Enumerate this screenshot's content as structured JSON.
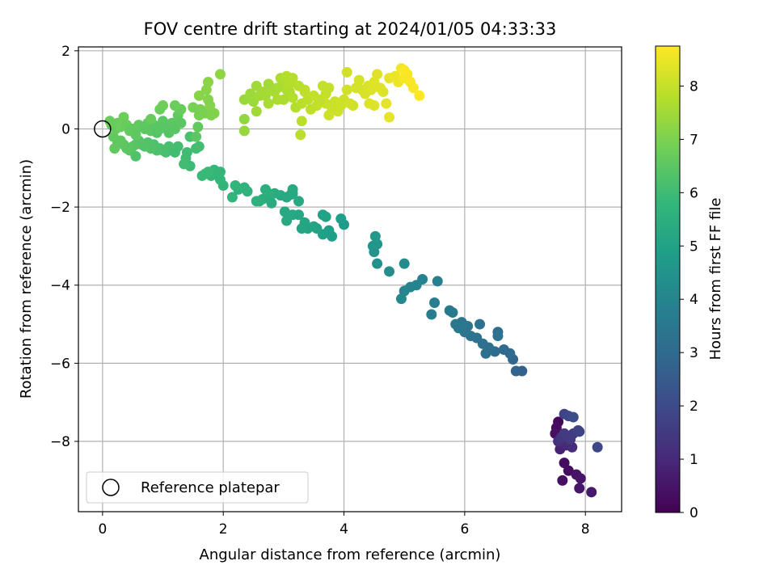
{
  "chart_data": {
    "type": "scatter",
    "title": "FOV centre drift starting at 2024/01/05 04:33:33",
    "xlabel": "Angular distance from reference (arcmin)",
    "ylabel": "Rotation from reference (arcmin)",
    "xlim": [
      -0.4,
      8.6
    ],
    "ylim": [
      -9.8,
      2.1
    ],
    "xticks": [
      0,
      2,
      4,
      6,
      8
    ],
    "yticks": [
      -8,
      -6,
      -4,
      -2,
      0,
      2
    ],
    "xtick_labels": [
      "0",
      "2",
      "4",
      "6",
      "8"
    ],
    "ytick_labels": [
      "−8",
      "−6",
      "−4",
      "−2",
      "0",
      "2"
    ],
    "grid": true,
    "colormap": "viridis",
    "colorbar": {
      "label": "Hours from first FF file",
      "range": [
        0,
        8.75
      ],
      "ticks": [
        0,
        1,
        2,
        3,
        4,
        5,
        6,
        7,
        8
      ],
      "tick_labels": [
        "0",
        "1",
        "2",
        "3",
        "4",
        "5",
        "6",
        "7",
        "8"
      ]
    },
    "legend": {
      "position": "lower-left",
      "entries": [
        "Reference platepar"
      ]
    },
    "reference_point": {
      "x": 0,
      "y": 0
    },
    "points": [
      {
        "x": 7.55,
        "y": -7.5,
        "h": 0.2
      },
      {
        "x": 7.52,
        "y": -7.65,
        "h": 0.3
      },
      {
        "x": 7.5,
        "y": -7.8,
        "h": 0.4
      },
      {
        "x": 7.62,
        "y": -7.85,
        "h": 0.5
      },
      {
        "x": 7.7,
        "y": -8.0,
        "h": 0.6
      },
      {
        "x": 7.65,
        "y": -8.55,
        "h": 0.3
      },
      {
        "x": 7.72,
        "y": -8.75,
        "h": 0.35
      },
      {
        "x": 7.85,
        "y": -8.85,
        "h": 0.45
      },
      {
        "x": 7.92,
        "y": -8.95,
        "h": 0.5
      },
      {
        "x": 7.9,
        "y": -9.2,
        "h": 0.55
      },
      {
        "x": 8.1,
        "y": -9.3,
        "h": 0.6
      },
      {
        "x": 7.62,
        "y": -9.0,
        "h": 0.4
      },
      {
        "x": 7.58,
        "y": -8.2,
        "h": 0.8
      },
      {
        "x": 7.68,
        "y": -8.1,
        "h": 1.0
      },
      {
        "x": 7.78,
        "y": -8.15,
        "h": 1.1
      },
      {
        "x": 7.55,
        "y": -8.0,
        "h": 1.2
      },
      {
        "x": 7.6,
        "y": -7.9,
        "h": 1.4
      },
      {
        "x": 7.75,
        "y": -7.95,
        "h": 1.5
      },
      {
        "x": 7.8,
        "y": -7.8,
        "h": 1.6
      },
      {
        "x": 7.9,
        "y": -7.75,
        "h": 1.7
      },
      {
        "x": 7.65,
        "y": -7.3,
        "h": 1.8
      },
      {
        "x": 7.72,
        "y": -7.35,
        "h": 1.9
      },
      {
        "x": 7.8,
        "y": -7.38,
        "h": 2.0
      },
      {
        "x": 7.65,
        "y": -7.8,
        "h": 1.5
      },
      {
        "x": 8.2,
        "y": -8.15,
        "h": 1.9
      },
      {
        "x": 7.88,
        "y": -7.72,
        "h": 1.75
      },
      {
        "x": 6.95,
        "y": -6.2,
        "h": 2.7
      },
      {
        "x": 6.85,
        "y": -6.2,
        "h": 2.8
      },
      {
        "x": 6.8,
        "y": -5.9,
        "h": 2.9
      },
      {
        "x": 6.75,
        "y": -5.75,
        "h": 3.0
      },
      {
        "x": 6.65,
        "y": -5.65,
        "h": 3.0
      },
      {
        "x": 6.55,
        "y": -5.2,
        "h": 3.1
      },
      {
        "x": 6.5,
        "y": -5.7,
        "h": 3.1
      },
      {
        "x": 6.4,
        "y": -5.6,
        "h": 3.2
      },
      {
        "x": 6.35,
        "y": -5.75,
        "h": 3.2
      },
      {
        "x": 6.3,
        "y": -5.5,
        "h": 3.25
      },
      {
        "x": 6.25,
        "y": -5.0,
        "h": 3.3
      },
      {
        "x": 6.2,
        "y": -5.35,
        "h": 3.3
      },
      {
        "x": 6.1,
        "y": -5.3,
        "h": 3.35
      },
      {
        "x": 6.05,
        "y": -5.05,
        "h": 3.4
      },
      {
        "x": 6.0,
        "y": -5.2,
        "h": 3.4
      },
      {
        "x": 5.95,
        "y": -4.95,
        "h": 3.45
      },
      {
        "x": 5.9,
        "y": -5.1,
        "h": 3.5
      },
      {
        "x": 5.85,
        "y": -5.0,
        "h": 3.5
      },
      {
        "x": 5.8,
        "y": -4.7,
        "h": 3.55
      },
      {
        "x": 5.75,
        "y": -4.65,
        "h": 3.6
      },
      {
        "x": 6.55,
        "y": -5.3,
        "h": 3.3
      },
      {
        "x": 5.5,
        "y": -4.45,
        "h": 3.7
      },
      {
        "x": 5.45,
        "y": -4.75,
        "h": 3.75
      },
      {
        "x": 5.55,
        "y": -3.9,
        "h": 3.8
      },
      {
        "x": 5.3,
        "y": -3.85,
        "h": 3.9
      },
      {
        "x": 5.2,
        "y": -4.0,
        "h": 3.95
      },
      {
        "x": 5.1,
        "y": -4.05,
        "h": 4.0
      },
      {
        "x": 5.0,
        "y": -4.15,
        "h": 4.05
      },
      {
        "x": 4.95,
        "y": -4.35,
        "h": 4.1
      },
      {
        "x": 5.0,
        "y": -3.45,
        "h": 4.2
      },
      {
        "x": 4.75,
        "y": -3.65,
        "h": 4.3
      },
      {
        "x": 4.55,
        "y": -3.45,
        "h": 4.4
      },
      {
        "x": 4.5,
        "y": -3.15,
        "h": 4.5
      },
      {
        "x": 4.48,
        "y": -3.0,
        "h": 4.55
      },
      {
        "x": 4.55,
        "y": -2.95,
        "h": 4.6
      },
      {
        "x": 4.52,
        "y": -2.75,
        "h": 4.65
      },
      {
        "x": 4.0,
        "y": -2.45,
        "h": 4.8
      },
      {
        "x": 3.95,
        "y": -2.3,
        "h": 4.85
      },
      {
        "x": 3.8,
        "y": -2.75,
        "h": 4.9
      },
      {
        "x": 3.75,
        "y": -2.6,
        "h": 4.9
      },
      {
        "x": 3.65,
        "y": -2.7,
        "h": 4.95
      },
      {
        "x": 3.7,
        "y": -2.25,
        "h": 5.0
      },
      {
        "x": 3.65,
        "y": -2.2,
        "h": 5.0
      },
      {
        "x": 3.55,
        "y": -2.55,
        "h": 5.05
      },
      {
        "x": 3.5,
        "y": -2.5,
        "h": 5.1
      },
      {
        "x": 3.4,
        "y": -2.55,
        "h": 5.1
      },
      {
        "x": 3.35,
        "y": -2.4,
        "h": 5.15
      },
      {
        "x": 3.3,
        "y": -2.55,
        "h": 5.15
      },
      {
        "x": 3.25,
        "y": -2.2,
        "h": 5.2
      },
      {
        "x": 3.15,
        "y": -2.2,
        "h": 5.2
      },
      {
        "x": 3.05,
        "y": -2.35,
        "h": 5.25
      },
      {
        "x": 3.02,
        "y": -2.12,
        "h": 5.25
      },
      {
        "x": 2.95,
        "y": -1.7,
        "h": 5.3
      },
      {
        "x": 3.05,
        "y": -1.75,
        "h": 5.3
      },
      {
        "x": 3.15,
        "y": -1.65,
        "h": 5.3
      },
      {
        "x": 2.85,
        "y": -1.65,
        "h": 5.35
      },
      {
        "x": 2.75,
        "y": -1.75,
        "h": 5.4
      },
      {
        "x": 2.8,
        "y": -1.9,
        "h": 5.4
      },
      {
        "x": 2.65,
        "y": -1.8,
        "h": 5.45
      },
      {
        "x": 2.6,
        "y": -1.85,
        "h": 5.5
      },
      {
        "x": 2.7,
        "y": -1.55,
        "h": 5.5
      },
      {
        "x": 2.75,
        "y": -1.65,
        "h": 5.5
      },
      {
        "x": 2.55,
        "y": -1.85,
        "h": 5.55
      },
      {
        "x": 3.25,
        "y": -1.85,
        "h": 5.25
      },
      {
        "x": 3.12,
        "y": -1.68,
        "h": 5.3
      },
      {
        "x": 3.15,
        "y": -1.55,
        "h": 5.3
      },
      {
        "x": 2.4,
        "y": -1.6,
        "h": 5.6
      },
      {
        "x": 2.35,
        "y": -1.5,
        "h": 5.65
      },
      {
        "x": 2.25,
        "y": -1.55,
        "h": 5.65
      },
      {
        "x": 2.2,
        "y": -1.45,
        "h": 5.7
      },
      {
        "x": 2.15,
        "y": -1.75,
        "h": 5.7
      },
      {
        "x": 2.0,
        "y": -1.45,
        "h": 5.75
      },
      {
        "x": 1.95,
        "y": -1.3,
        "h": 5.8
      },
      {
        "x": 1.9,
        "y": -1.15,
        "h": 5.8
      },
      {
        "x": 1.85,
        "y": -1.05,
        "h": 5.85
      },
      {
        "x": 1.8,
        "y": -1.2,
        "h": 5.85
      },
      {
        "x": 1.75,
        "y": -1.1,
        "h": 5.9
      },
      {
        "x": 1.7,
        "y": -1.15,
        "h": 5.9
      },
      {
        "x": 1.65,
        "y": -1.2,
        "h": 5.9
      },
      {
        "x": 1.95,
        "y": -1.1,
        "h": 5.8
      },
      {
        "x": 1.45,
        "y": -0.95,
        "h": 5.95
      },
      {
        "x": 1.4,
        "y": -0.6,
        "h": 6.0
      },
      {
        "x": 1.38,
        "y": -0.75,
        "h": 6.0
      },
      {
        "x": 1.35,
        "y": -0.9,
        "h": 6.05
      },
      {
        "x": 1.55,
        "y": -0.5,
        "h": 6.05
      },
      {
        "x": 1.25,
        "y": -0.45,
        "h": 6.1
      },
      {
        "x": 1.2,
        "y": -0.55,
        "h": 6.1
      },
      {
        "x": 1.1,
        "y": -0.45,
        "h": 6.15
      },
      {
        "x": 1.05,
        "y": -0.6,
        "h": 6.15
      },
      {
        "x": 1.0,
        "y": -0.55,
        "h": 6.2
      },
      {
        "x": 0.95,
        "y": -0.5,
        "h": 6.2
      },
      {
        "x": 0.9,
        "y": -0.55,
        "h": 6.25
      },
      {
        "x": 0.85,
        "y": -0.4,
        "h": 6.25
      },
      {
        "x": 0.8,
        "y": -0.5,
        "h": 6.3
      },
      {
        "x": 0.75,
        "y": -0.35,
        "h": 6.3
      },
      {
        "x": 0.7,
        "y": -0.45,
        "h": 6.35
      },
      {
        "x": 0.65,
        "y": -0.4,
        "h": 6.35
      },
      {
        "x": 0.6,
        "y": -0.3,
        "h": 6.4
      },
      {
        "x": 0.55,
        "y": -0.4,
        "h": 6.4
      },
      {
        "x": 0.5,
        "y": -0.45,
        "h": 6.45
      },
      {
        "x": 0.45,
        "y": -0.55,
        "h": 6.45
      },
      {
        "x": 0.4,
        "y": -0.5,
        "h": 6.5
      },
      {
        "x": 0.35,
        "y": -0.4,
        "h": 6.5
      },
      {
        "x": 0.3,
        "y": -0.3,
        "h": 6.55
      },
      {
        "x": 0.25,
        "y": -0.35,
        "h": 6.55
      },
      {
        "x": 0.2,
        "y": -0.5,
        "h": 6.6
      },
      {
        "x": 0.18,
        "y": -0.2,
        "h": 6.6
      },
      {
        "x": 0.22,
        "y": 0.0,
        "h": 6.65
      },
      {
        "x": 0.15,
        "y": 0.1,
        "h": 6.65
      },
      {
        "x": 0.12,
        "y": 0.2,
        "h": 6.7
      },
      {
        "x": 0.25,
        "y": 0.15,
        "h": 6.7
      },
      {
        "x": 0.3,
        "y": 0.05,
        "h": 6.75
      },
      {
        "x": 0.35,
        "y": 0.3,
        "h": 6.75
      },
      {
        "x": 0.4,
        "y": 0.1,
        "h": 6.7
      },
      {
        "x": 0.45,
        "y": -0.05,
        "h": 6.65
      },
      {
        "x": 0.5,
        "y": 0.0,
        "h": 6.6
      },
      {
        "x": 0.55,
        "y": -0.15,
        "h": 6.55
      },
      {
        "x": 0.6,
        "y": 0.1,
        "h": 6.6
      },
      {
        "x": 0.65,
        "y": 0.05,
        "h": 6.55
      },
      {
        "x": 0.7,
        "y": 0.0,
        "h": 6.5
      },
      {
        "x": 0.75,
        "y": 0.15,
        "h": 6.55
      },
      {
        "x": 0.8,
        "y": -0.05,
        "h": 6.5
      },
      {
        "x": 0.85,
        "y": 0.1,
        "h": 6.45
      },
      {
        "x": 0.9,
        "y": -0.1,
        "h": 6.4
      },
      {
        "x": 0.95,
        "y": 0.0,
        "h": 6.45
      },
      {
        "x": 1.0,
        "y": 0.2,
        "h": 6.5
      },
      {
        "x": 1.05,
        "y": 0.05,
        "h": 6.45
      },
      {
        "x": 1.1,
        "y": -0.1,
        "h": 6.4
      },
      {
        "x": 1.15,
        "y": 0.15,
        "h": 6.5
      },
      {
        "x": 1.2,
        "y": 0.0,
        "h": 6.45
      },
      {
        "x": 1.25,
        "y": 0.35,
        "h": 6.6
      },
      {
        "x": 1.3,
        "y": 0.5,
        "h": 6.7
      },
      {
        "x": 1.2,
        "y": 0.6,
        "h": 6.75
      },
      {
        "x": 1.0,
        "y": 0.6,
        "h": 6.8
      },
      {
        "x": 0.95,
        "y": 0.5,
        "h": 6.75
      },
      {
        "x": 0.8,
        "y": 0.25,
        "h": 6.7
      },
      {
        "x": 0.55,
        "y": -0.7,
        "h": 6.3
      },
      {
        "x": 1.45,
        "y": -0.2,
        "h": 6.2
      },
      {
        "x": 1.6,
        "y": -0.45,
        "h": 6.1
      },
      {
        "x": 1.55,
        "y": -0.2,
        "h": 6.5
      },
      {
        "x": 1.58,
        "y": 0.05,
        "h": 6.6
      },
      {
        "x": 1.2,
        "y": -0.6,
        "h": 6.05
      },
      {
        "x": 1.3,
        "y": 0.15,
        "h": 6.5
      },
      {
        "x": 1.6,
        "y": 0.35,
        "h": 6.9
      },
      {
        "x": 1.62,
        "y": 0.5,
        "h": 6.95
      },
      {
        "x": 1.7,
        "y": 0.4,
        "h": 7.0
      },
      {
        "x": 1.75,
        "y": 0.45,
        "h": 7.0
      },
      {
        "x": 1.8,
        "y": 0.35,
        "h": 7.05
      },
      {
        "x": 1.85,
        "y": 0.4,
        "h": 7.05
      },
      {
        "x": 1.78,
        "y": 0.6,
        "h": 7.1
      },
      {
        "x": 1.75,
        "y": 0.75,
        "h": 7.1
      },
      {
        "x": 1.6,
        "y": 0.85,
        "h": 7.15
      },
      {
        "x": 1.72,
        "y": 1.0,
        "h": 7.15
      },
      {
        "x": 1.75,
        "y": 1.2,
        "h": 7.2
      },
      {
        "x": 1.95,
        "y": 1.4,
        "h": 7.25
      },
      {
        "x": 1.5,
        "y": 0.55,
        "h": 6.9
      },
      {
        "x": 1.65,
        "y": 0.4,
        "h": 6.95
      },
      {
        "x": 2.35,
        "y": 0.25,
        "h": 7.3
      },
      {
        "x": 2.35,
        "y": -0.05,
        "h": 7.35
      },
      {
        "x": 2.35,
        "y": 0.75,
        "h": 7.4
      },
      {
        "x": 2.45,
        "y": 0.9,
        "h": 7.45
      },
      {
        "x": 2.5,
        "y": 0.7,
        "h": 7.45
      },
      {
        "x": 2.55,
        "y": 1.1,
        "h": 7.5
      },
      {
        "x": 2.6,
        "y": 0.85,
        "h": 7.5
      },
      {
        "x": 2.55,
        "y": 0.45,
        "h": 7.5
      },
      {
        "x": 2.65,
        "y": 0.95,
        "h": 7.55
      },
      {
        "x": 2.7,
        "y": 0.85,
        "h": 7.55
      },
      {
        "x": 2.75,
        "y": 0.65,
        "h": 7.6
      },
      {
        "x": 2.8,
        "y": 1.05,
        "h": 7.6
      },
      {
        "x": 2.85,
        "y": 0.95,
        "h": 7.6
      },
      {
        "x": 2.9,
        "y": 0.75,
        "h": 7.65
      },
      {
        "x": 2.95,
        "y": 1.3,
        "h": 7.65
      },
      {
        "x": 3.0,
        "y": 1.2,
        "h": 7.7
      },
      {
        "x": 3.05,
        "y": 1.0,
        "h": 7.7
      },
      {
        "x": 3.1,
        "y": 0.95,
        "h": 7.7
      },
      {
        "x": 3.05,
        "y": 1.35,
        "h": 7.75
      },
      {
        "x": 3.1,
        "y": 1.15,
        "h": 7.75
      },
      {
        "x": 3.15,
        "y": 0.8,
        "h": 7.75
      },
      {
        "x": 3.2,
        "y": 0.55,
        "h": 7.75
      },
      {
        "x": 3.15,
        "y": 1.3,
        "h": 7.8
      },
      {
        "x": 3.0,
        "y": 0.75,
        "h": 7.65
      },
      {
        "x": 3.25,
        "y": 1.1,
        "h": 7.8
      },
      {
        "x": 3.3,
        "y": 0.2,
        "h": 7.85
      },
      {
        "x": 3.28,
        "y": -0.15,
        "h": 7.85
      },
      {
        "x": 3.3,
        "y": 0.65,
        "h": 7.85
      },
      {
        "x": 3.35,
        "y": 0.95,
        "h": 7.9
      },
      {
        "x": 3.4,
        "y": 0.75,
        "h": 7.9
      },
      {
        "x": 3.45,
        "y": 0.5,
        "h": 7.9
      },
      {
        "x": 3.5,
        "y": 0.85,
        "h": 7.95
      },
      {
        "x": 3.55,
        "y": 0.6,
        "h": 7.95
      },
      {
        "x": 3.6,
        "y": 0.75,
        "h": 8.0
      },
      {
        "x": 3.65,
        "y": 1.1,
        "h": 8.0
      },
      {
        "x": 3.7,
        "y": 0.9,
        "h": 8.0
      },
      {
        "x": 3.75,
        "y": 1.05,
        "h": 8.0
      },
      {
        "x": 3.7,
        "y": 0.65,
        "h": 8.05
      },
      {
        "x": 3.8,
        "y": 0.55,
        "h": 8.05
      },
      {
        "x": 3.85,
        "y": 0.7,
        "h": 8.05
      },
      {
        "x": 3.9,
        "y": 0.45,
        "h": 8.1
      },
      {
        "x": 3.95,
        "y": 0.6,
        "h": 8.1
      },
      {
        "x": 4.0,
        "y": 0.75,
        "h": 8.1
      },
      {
        "x": 3.75,
        "y": 0.35,
        "h": 8.1
      },
      {
        "x": 4.05,
        "y": 1.0,
        "h": 8.15
      },
      {
        "x": 4.05,
        "y": 1.45,
        "h": 8.15
      },
      {
        "x": 4.1,
        "y": 0.65,
        "h": 8.15
      },
      {
        "x": 4.15,
        "y": 0.6,
        "h": 8.15
      },
      {
        "x": 4.2,
        "y": 1.05,
        "h": 8.2
      },
      {
        "x": 4.25,
        "y": 1.25,
        "h": 8.2
      },
      {
        "x": 4.3,
        "y": 1.0,
        "h": 8.2
      },
      {
        "x": 4.35,
        "y": 0.9,
        "h": 8.25
      },
      {
        "x": 4.4,
        "y": 1.1,
        "h": 8.25
      },
      {
        "x": 4.45,
        "y": 1.0,
        "h": 8.3
      },
      {
        "x": 4.5,
        "y": 1.2,
        "h": 8.3
      },
      {
        "x": 4.55,
        "y": 1.4,
        "h": 8.35
      },
      {
        "x": 4.6,
        "y": 1.05,
        "h": 8.35
      },
      {
        "x": 4.65,
        "y": 0.95,
        "h": 8.35
      },
      {
        "x": 4.5,
        "y": 0.6,
        "h": 8.3
      },
      {
        "x": 4.42,
        "y": 0.65,
        "h": 8.3
      },
      {
        "x": 4.7,
        "y": 0.65,
        "h": 8.4
      },
      {
        "x": 4.75,
        "y": 1.3,
        "h": 8.45
      },
      {
        "x": 4.75,
        "y": 0.3,
        "h": 8.45
      },
      {
        "x": 4.85,
        "y": 1.35,
        "h": 8.5
      },
      {
        "x": 4.9,
        "y": 1.2,
        "h": 8.55
      },
      {
        "x": 4.95,
        "y": 1.55,
        "h": 8.6
      },
      {
        "x": 5.0,
        "y": 1.3,
        "h": 8.65
      },
      {
        "x": 5.05,
        "y": 1.4,
        "h": 8.65
      },
      {
        "x": 5.1,
        "y": 1.2,
        "h": 8.7
      },
      {
        "x": 5.15,
        "y": 1.05,
        "h": 8.7
      },
      {
        "x": 5.25,
        "y": 0.85,
        "h": 8.75
      },
      {
        "x": 5.0,
        "y": 1.5,
        "h": 8.7
      },
      {
        "x": 3.35,
        "y": 1.0,
        "h": 7.9
      },
      {
        "x": 3.6,
        "y": 0.7,
        "h": 7.95
      },
      {
        "x": 2.9,
        "y": 1.05,
        "h": 7.6
      },
      {
        "x": 2.75,
        "y": 1.15,
        "h": 7.55
      }
    ]
  }
}
